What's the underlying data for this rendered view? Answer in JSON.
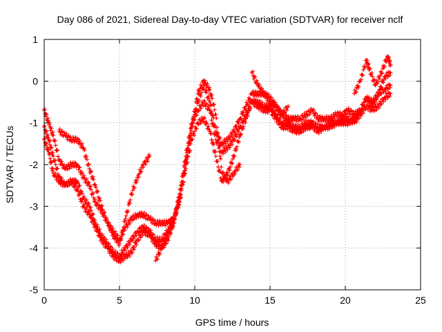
{
  "chart_data": {
    "type": "scatter",
    "title": "Day 086 of 2021, Sidereal Day-to-day VTEC variation (SDTVAR) for receiver nclf",
    "xlabel": "GPS time / hours",
    "ylabel": "SDTVAR / TECUs",
    "xlim": [
      0,
      25
    ],
    "ylim": [
      -5,
      1
    ],
    "xticks": [
      0,
      5,
      10,
      15,
      20,
      25
    ],
    "yticks": [
      -5,
      -4,
      -3,
      -2,
      -1,
      0,
      1
    ],
    "xtick_labels": [
      "0",
      "5",
      "10",
      "15",
      "20",
      "25"
    ],
    "ytick_labels": [
      "-5",
      "-4",
      "-3",
      "-2",
      "-1",
      "0",
      "1"
    ],
    "grid": true,
    "legend": "none",
    "marker": "+",
    "color": "#ff0000",
    "series": [
      {
        "x": [
          0.0,
          0.3,
          0.6,
          1.0,
          1.4,
          1.8,
          2.2,
          2.6,
          3.0,
          3.4,
          3.8,
          4.2,
          4.6,
          5.0,
          5.4,
          5.8,
          6.2,
          6.6,
          7.0,
          7.4,
          7.8,
          8.2,
          8.6,
          9.0,
          9.4,
          9.8,
          10.2,
          10.6,
          11.0,
          11.4,
          11.8,
          12.2,
          12.6,
          13.0,
          13.4,
          13.8,
          14.2,
          14.6,
          15.0,
          15.4,
          15.8,
          16.2,
          16.6,
          17.0,
          17.4,
          17.8,
          18.2,
          18.6,
          19.0,
          19.4,
          19.8,
          20.2,
          20.6,
          21.0,
          21.4,
          21.8,
          22.2,
          22.6,
          23.0
        ],
        "y": [
          -0.7,
          -1.0,
          -1.3,
          -1.9,
          -2.1,
          -2.0,
          -2.0,
          -2.3,
          -2.5,
          -2.9,
          -3.1,
          -3.4,
          -3.6,
          -3.8,
          -3.5,
          -3.3,
          -3.2,
          -3.2,
          -3.3,
          -3.4,
          -3.4,
          -3.4,
          -3.3,
          -2.9,
          -2.0,
          -1.1,
          -0.5,
          -0.1,
          -0.5,
          -1.2,
          -1.5,
          -1.4,
          -1.2,
          -0.9,
          -0.6,
          -0.3,
          -0.3,
          -0.3,
          -0.4,
          -0.6,
          -0.8,
          -0.9,
          -0.9,
          -0.9,
          -0.8,
          -0.7,
          -0.9,
          -0.9,
          -0.9,
          -0.8,
          -0.8,
          -0.7,
          -0.8,
          -0.7,
          -0.4,
          -0.5,
          -0.3,
          -0.2,
          -0.1
        ]
      },
      {
        "x": [
          0.0,
          0.3,
          0.6,
          1.0,
          1.4,
          1.8,
          2.2,
          2.6,
          3.0,
          3.4,
          3.8,
          4.2,
          4.6,
          5.0,
          5.4,
          5.8,
          6.2,
          6.6,
          7.0,
          7.4,
          7.8,
          8.2,
          8.6,
          9.0,
          9.4,
          9.8,
          10.2,
          10.6,
          11.0,
          11.4,
          11.8,
          12.2,
          12.6,
          13.0,
          13.4,
          13.8,
          14.2,
          14.6,
          15.0,
          15.4,
          15.8,
          16.2,
          16.6,
          17.0,
          17.4,
          17.8,
          18.2,
          18.6,
          19.0,
          19.4,
          19.8,
          20.2,
          20.6,
          21.0,
          21.4,
          21.8,
          22.2,
          22.6,
          23.0
        ],
        "y": [
          -1.1,
          -1.4,
          -1.8,
          -2.3,
          -2.5,
          -2.4,
          -2.4,
          -2.8,
          -3.0,
          -3.4,
          -3.7,
          -3.9,
          -4.1,
          -4.2,
          -4.0,
          -3.8,
          -3.6,
          -3.5,
          -3.6,
          -3.8,
          -3.8,
          -3.6,
          -3.3,
          -2.7,
          -1.8,
          -1.0,
          -0.7,
          -0.5,
          -0.7,
          -1.4,
          -1.7,
          -1.6,
          -1.4,
          -1.1,
          -0.8,
          -0.5,
          -0.5,
          -0.6,
          -0.6,
          -0.8,
          -1.0,
          -1.0,
          -1.1,
          -1.1,
          -1.0,
          -1.0,
          -1.1,
          -1.1,
          -1.0,
          -1.0,
          -0.9,
          -0.9,
          -1.0,
          -0.8,
          -0.6,
          -0.7,
          -0.6,
          -0.4,
          -0.3
        ]
      },
      {
        "x": [
          0.0,
          0.3,
          0.6,
          1.0,
          1.4,
          1.8,
          2.2,
          2.6,
          3.0,
          3.4,
          3.8,
          4.2,
          4.6,
          5.0,
          5.4,
          5.8,
          6.2,
          6.6,
          7.0,
          7.4,
          7.8,
          8.2,
          8.6,
          9.0,
          9.4,
          9.8,
          10.2,
          10.6,
          11.0,
          11.4,
          11.8,
          12.2,
          12.6,
          13.0,
          13.4,
          13.8,
          14.2,
          14.6,
          15.0,
          15.4,
          15.8,
          16.2,
          16.6,
          17.0,
          17.4,
          17.8,
          18.2,
          18.6,
          19.0,
          19.4,
          19.8,
          20.2,
          20.6,
          21.0,
          21.4,
          21.8,
          22.2,
          22.6,
          23.0
        ],
        "y": [
          -1.4,
          -1.7,
          -2.2,
          -2.4,
          -2.5,
          -2.4,
          -2.6,
          -3.0,
          -3.2,
          -3.5,
          -3.8,
          -4.0,
          -4.2,
          -4.3,
          -4.2,
          -4.1,
          -3.8,
          -3.6,
          -3.7,
          -3.9,
          -4.0,
          -3.7,
          -3.4,
          -2.8,
          -2.1,
          -1.4,
          -1.0,
          -0.9,
          -1.2,
          -1.8,
          -2.4,
          -2.2,
          -1.8,
          -1.3,
          -0.9,
          -0.5,
          -0.6,
          -0.7,
          -0.7,
          -0.9,
          -1.1,
          -1.1,
          -1.2,
          -1.2,
          -1.1,
          -1.1,
          -1.2,
          -1.1,
          -1.1,
          -1.0,
          -1.0,
          -1.0,
          -0.9,
          -0.7,
          -0.4,
          -0.6,
          -0.3,
          0.1,
          0.2
        ]
      },
      {
        "x": [
          1.0,
          1.4,
          1.8,
          2.2,
          2.6,
          3.0,
          3.4,
          3.8,
          4.2,
          4.6,
          5.0,
          5.4,
          5.8,
          6.2,
          6.6,
          7.0
        ],
        "y": [
          -1.2,
          -1.3,
          -1.4,
          -1.4,
          -1.6,
          -2.1,
          -2.5,
          -3.0,
          -3.4,
          -3.7,
          -3.9,
          -3.3,
          -2.7,
          -2.3,
          -2.0,
          -1.8
        ]
      },
      {
        "x": [
          7.4,
          7.8,
          8.2,
          8.6,
          9.0,
          9.4,
          9.8,
          10.2,
          10.6,
          11.0,
          11.4,
          11.8,
          12.2,
          12.6,
          13.0
        ],
        "y": [
          -4.3,
          -4.0,
          -3.8,
          -3.4,
          -2.7,
          -1.9,
          -1.1,
          -0.3,
          0.0,
          -0.2,
          -0.8,
          -2.2,
          -2.4,
          -2.2,
          -2.0
        ]
      },
      {
        "x": [
          13.8,
          14.2,
          14.6,
          15.0,
          15.4,
          15.8,
          16.2
        ],
        "y": [
          0.2,
          -0.1,
          -0.3,
          -0.5,
          -0.6,
          -0.8,
          -0.6
        ]
      },
      {
        "x": [
          20.6,
          21.0,
          21.4,
          21.6,
          22.0,
          22.4,
          22.8,
          23.0
        ],
        "y": [
          -0.3,
          0.0,
          0.5,
          0.3,
          -0.1,
          0.2,
          0.6,
          0.4
        ]
      }
    ]
  }
}
